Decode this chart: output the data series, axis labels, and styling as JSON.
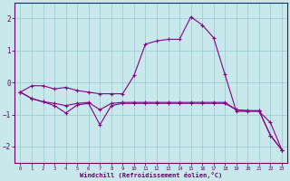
{
  "xlabel": "Windchill (Refroidissement éolien,°C)",
  "background_color": "#c8e8ec",
  "grid_color": "#a0ccd4",
  "line_color": "#880088",
  "ylim": [
    -2.5,
    2.5
  ],
  "xlim": [
    -0.5,
    23.5
  ],
  "yticks": [
    -2,
    -1,
    0,
    1,
    2
  ],
  "xticks": [
    0,
    1,
    2,
    3,
    4,
    5,
    6,
    7,
    8,
    9,
    10,
    11,
    12,
    13,
    14,
    15,
    16,
    17,
    18,
    19,
    20,
    21,
    22,
    23
  ],
  "line1_x": [
    0,
    1,
    2,
    3,
    4,
    5,
    6,
    7,
    8,
    9,
    10,
    11,
    12,
    13,
    14,
    15,
    16,
    17,
    18,
    19,
    20,
    21,
    22,
    23
  ],
  "line1_y": [
    -0.3,
    -0.1,
    -0.1,
    -0.2,
    -0.15,
    -0.25,
    -0.3,
    -0.35,
    -0.35,
    -0.35,
    0.22,
    1.2,
    1.3,
    1.35,
    1.35,
    2.05,
    1.8,
    1.4,
    0.25,
    -0.9,
    -0.9,
    -0.9,
    -1.25,
    -2.1
  ],
  "line2_x": [
    0,
    1,
    2,
    3,
    4,
    5,
    6,
    7,
    8,
    9,
    10,
    11,
    12,
    13,
    14,
    15,
    16,
    17,
    18,
    19,
    20,
    21,
    22,
    23
  ],
  "line2_y": [
    -0.3,
    -0.5,
    -0.6,
    -0.65,
    -0.72,
    -0.65,
    -0.62,
    -0.85,
    -0.65,
    -0.62,
    -0.62,
    -0.62,
    -0.62,
    -0.62,
    -0.62,
    -0.62,
    -0.62,
    -0.62,
    -0.62,
    -0.85,
    -0.88,
    -0.88,
    -1.65,
    -2.1
  ],
  "line3_x": [
    0,
    1,
    2,
    3,
    4,
    5,
    6,
    7,
    8,
    9,
    10,
    11,
    12,
    13,
    14,
    15,
    16,
    17,
    18,
    19,
    20,
    21,
    22,
    23
  ],
  "line3_y": [
    -0.3,
    -0.5,
    -0.6,
    -0.72,
    -0.95,
    -0.7,
    -0.65,
    -1.32,
    -0.72,
    -0.65,
    -0.65,
    -0.65,
    -0.65,
    -0.65,
    -0.65,
    -0.65,
    -0.65,
    -0.65,
    -0.65,
    -0.85,
    -0.88,
    -0.88,
    -1.65,
    -2.1
  ]
}
